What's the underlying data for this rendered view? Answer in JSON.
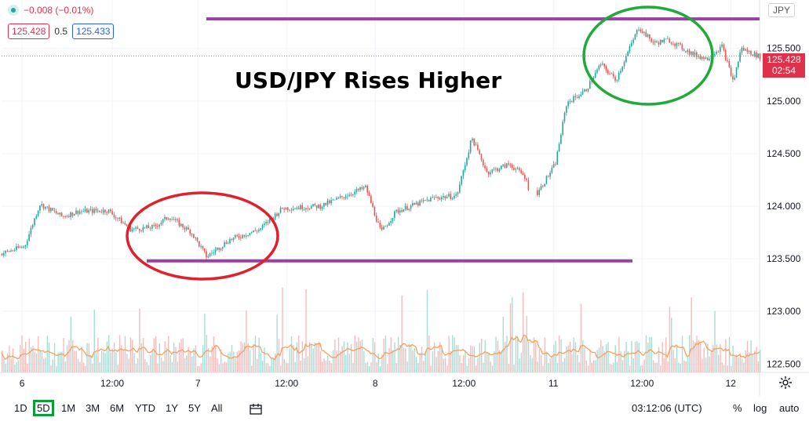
{
  "header": {
    "change_text": "−0.008 (−0.01%)",
    "sell_price": "125.428",
    "spread": "0.5",
    "buy_price": "125.433"
  },
  "currency_badge": "JPY",
  "title": "USD/JPY Rises Higher",
  "last_price_tag": {
    "price": "125.428",
    "countdown": "02:54"
  },
  "toolbar": {
    "timeframes": [
      "1D",
      "5D",
      "1M",
      "3M",
      "6M",
      "YTD",
      "1Y",
      "5Y",
      "All"
    ],
    "active_timeframe": "5D",
    "time": "03:12:06 (UTC)",
    "percent_label": "%",
    "log_label": "log",
    "auto_label": "auto"
  },
  "colors": {
    "up": "#26a69a",
    "down": "#ef5350",
    "volume_ma": "#f5a05e",
    "level_line": "#9c3fa6",
    "green_circle": "#1faa3a",
    "red_circle": "#e0202a",
    "price_tag": "#e0314b"
  },
  "chart_data": {
    "type": "candlestick",
    "ylim": [
      122.42,
      125.96
    ],
    "y_ticks": [
      "122.500",
      "123.000",
      "123.500",
      "124.000",
      "124.500",
      "125.000",
      "125.500"
    ],
    "x_ticks": [
      "6",
      "12:00",
      "7",
      "12:00",
      "8",
      "12:00",
      "11",
      "12:00",
      "12"
    ],
    "last_price": 125.428,
    "horizontal_levels": [
      125.78,
      123.48
    ],
    "price_path": [
      {
        "x": 0,
        "y": 123.55
      },
      {
        "x": 0.03,
        "y": 123.62
      },
      {
        "x": 0.05,
        "y": 124.02
      },
      {
        "x": 0.08,
        "y": 123.9
      },
      {
        "x": 0.1,
        "y": 123.95
      },
      {
        "x": 0.14,
        "y": 123.96
      },
      {
        "x": 0.17,
        "y": 123.78
      },
      {
        "x": 0.2,
        "y": 123.8
      },
      {
        "x": 0.22,
        "y": 123.9
      },
      {
        "x": 0.25,
        "y": 123.75
      },
      {
        "x": 0.27,
        "y": 123.52
      },
      {
        "x": 0.3,
        "y": 123.68
      },
      {
        "x": 0.34,
        "y": 123.78
      },
      {
        "x": 0.37,
        "y": 123.98
      },
      {
        "x": 0.42,
        "y": 124.0
      },
      {
        "x": 0.48,
        "y": 124.18
      },
      {
        "x": 0.5,
        "y": 123.75
      },
      {
        "x": 0.52,
        "y": 123.95
      },
      {
        "x": 0.57,
        "y": 124.08
      },
      {
        "x": 0.6,
        "y": 124.1
      },
      {
        "x": 0.62,
        "y": 124.65
      },
      {
        "x": 0.64,
        "y": 124.32
      },
      {
        "x": 0.67,
        "y": 124.4
      },
      {
        "x": 0.69,
        "y": 124.28
      },
      {
        "x": 0.7,
        "y": 124.05
      },
      {
        "x": 0.73,
        "y": 124.4
      },
      {
        "x": 0.745,
        "y": 124.98
      },
      {
        "x": 0.77,
        "y": 125.1
      },
      {
        "x": 0.79,
        "y": 125.35
      },
      {
        "x": 0.81,
        "y": 125.2
      },
      {
        "x": 0.84,
        "y": 125.7
      },
      {
        "x": 0.86,
        "y": 125.55
      },
      {
        "x": 0.88,
        "y": 125.58
      },
      {
        "x": 0.91,
        "y": 125.45
      },
      {
        "x": 0.93,
        "y": 125.4
      },
      {
        "x": 0.95,
        "y": 125.52
      },
      {
        "x": 0.965,
        "y": 125.18
      },
      {
        "x": 0.975,
        "y": 125.5
      },
      {
        "x": 1.0,
        "y": 125.42
      }
    ]
  }
}
